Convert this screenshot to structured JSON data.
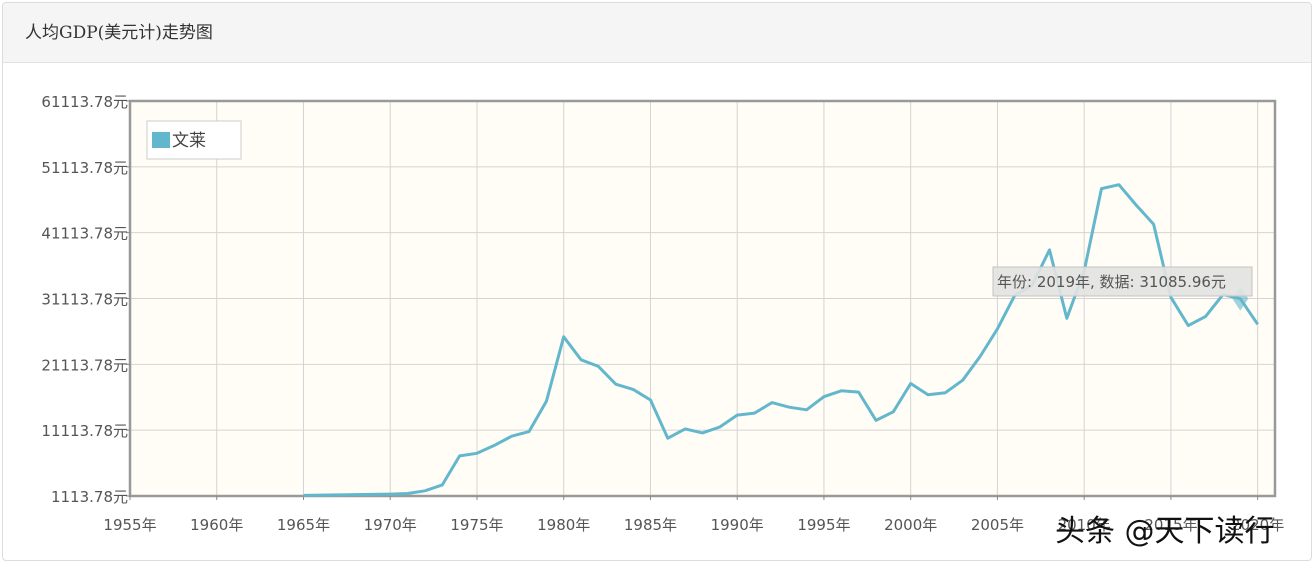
{
  "header": {
    "title": "人均GDP(美元计)走势图"
  },
  "chart_data": {
    "type": "line",
    "title": "人均GDP(美元计)走势图",
    "xlabel": "",
    "ylabel": "",
    "grid": true,
    "legend_position": "top-left",
    "xlim": [
      1955,
      2021
    ],
    "ylim": [
      1113.78,
      61113.78
    ],
    "x_ticks": [
      "1955年",
      "1960年",
      "1965年",
      "1970年",
      "1975年",
      "1980年",
      "1985年",
      "1990年",
      "1995年",
      "2000年",
      "2005年",
      "2010年",
      "2015年",
      "2020年"
    ],
    "y_ticks": [
      "61113.78元",
      "51113.78元",
      "41113.78元",
      "31113.78元",
      "21113.78元",
      "11113.78元",
      "1113.78元"
    ],
    "series": [
      {
        "name": "文莱",
        "color": "#63b7cd",
        "x": [
          1965,
          1966,
          1967,
          1968,
          1969,
          1970,
          1971,
          1972,
          1973,
          1974,
          1975,
          1976,
          1977,
          1978,
          1979,
          1980,
          1981,
          1982,
          1983,
          1984,
          1985,
          1986,
          1987,
          1988,
          1989,
          1990,
          1991,
          1992,
          1993,
          1994,
          1995,
          1996,
          1997,
          1998,
          1999,
          2000,
          2001,
          2002,
          2003,
          2004,
          2005,
          2006,
          2007,
          2008,
          2009,
          2010,
          2011,
          2012,
          2013,
          2014,
          2015,
          2016,
          2017,
          2018,
          2019,
          2020
        ],
        "values": [
          1200,
          1250,
          1280,
          1320,
          1350,
          1400,
          1500,
          1900,
          2800,
          7200,
          7600,
          8800,
          10200,
          10900,
          15500,
          25300,
          21800,
          20800,
          18100,
          17300,
          15700,
          9900,
          11300,
          10700,
          11600,
          13400,
          13700,
          15300,
          14600,
          14200,
          16200,
          17100,
          16900,
          12600,
          13900,
          18200,
          16500,
          16800,
          18700,
          22300,
          26500,
          31600,
          33100,
          38500,
          28100,
          35300,
          47800,
          48400,
          45300,
          42400,
          31300,
          27000,
          28400,
          31700,
          31085.96,
          27200
        ]
      }
    ],
    "tooltip": {
      "text": "年份: 2019年, 数据: 31085.96元",
      "year": 2019,
      "value": 31085.96
    }
  },
  "watermark": {
    "text": "头条 @天下读行"
  }
}
